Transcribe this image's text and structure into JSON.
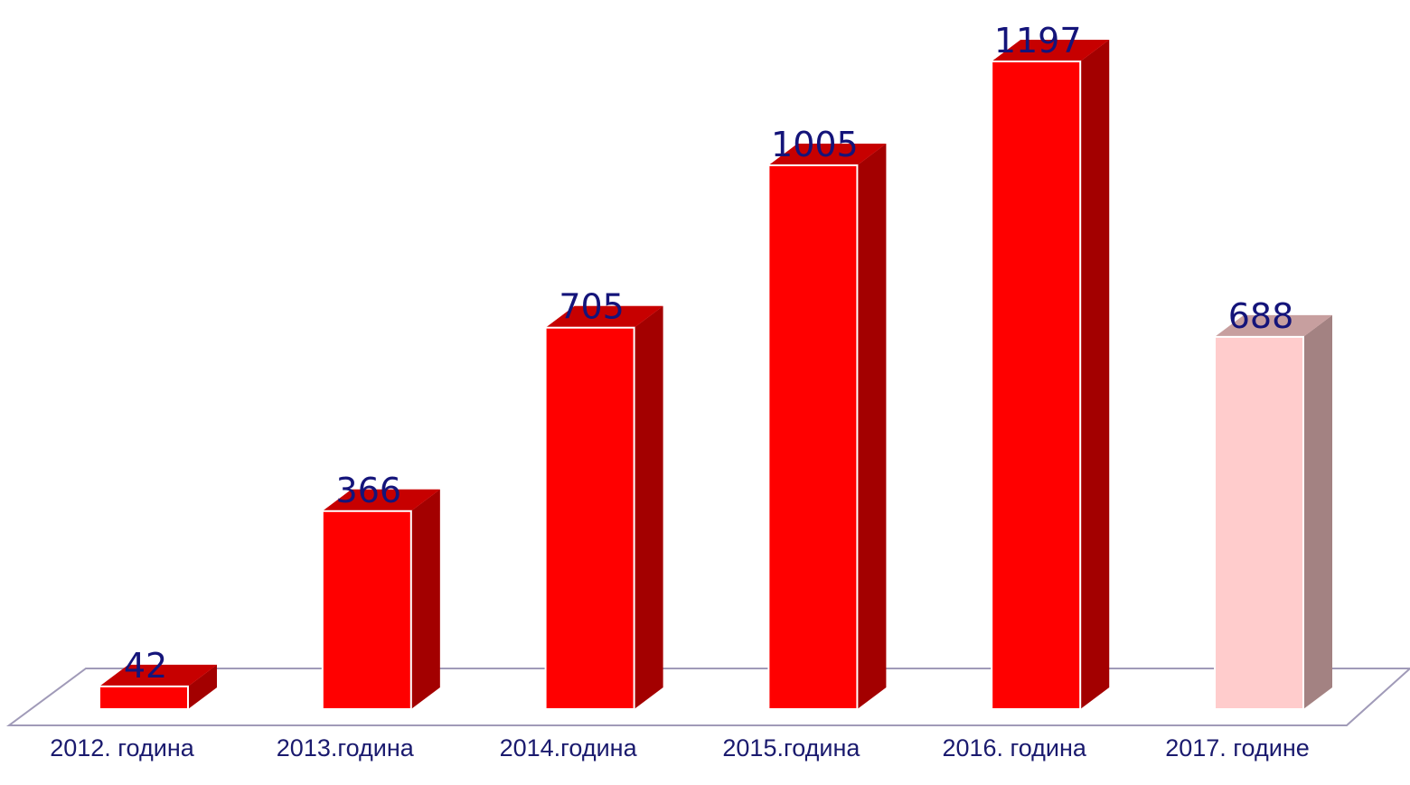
{
  "chart_data": {
    "type": "bar3d",
    "categories": [
      "2012. година",
      "2013.година",
      "2014.година",
      "2015.година",
      "2016. година",
      "2017. године"
    ],
    "values": [
      42,
      366,
      705,
      1005,
      1197,
      688
    ],
    "colors": [
      "#ff0000",
      "#ff0000",
      "#ff0000",
      "#ff0000",
      "#ff0000",
      "#ffcccc"
    ]
  }
}
